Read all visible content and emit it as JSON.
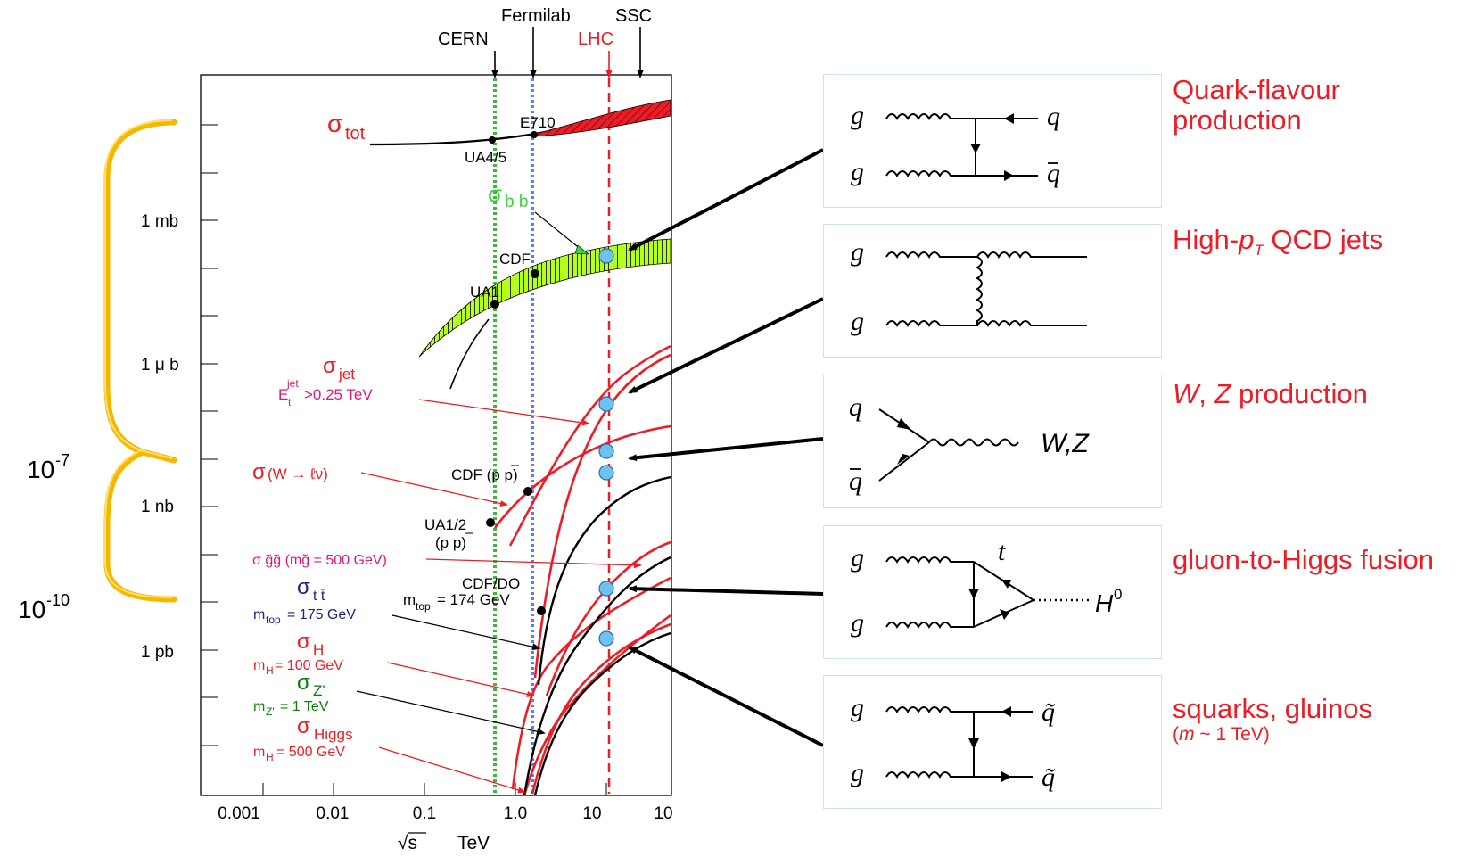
{
  "chart_data": {
    "type": "line",
    "x_axis": {
      "label": "TeV",
      "label_symbol": "√s",
      "scale": "log",
      "range": [
        0.0002,
        100
      ],
      "tick_labels": [
        "0.001",
        "0.01",
        "0.1",
        "1.0",
        "10",
        "10"
      ]
    },
    "y_axis": {
      "scale": "log",
      "tick_labels": [
        "1 mb",
        "1 μ b",
        "1 nb",
        "1 pb"
      ],
      "grid": false
    },
    "colliders": [
      {
        "name": "CERN",
        "sqrt_s_tev": 0.63
      },
      {
        "name": "Fermilab",
        "sqrt_s_tev": 1.8
      },
      {
        "name": "LHC",
        "sqrt_s_tev": 14
      },
      {
        "name": "SSC",
        "sqrt_s_tev": 40
      }
    ],
    "series": [
      {
        "name": "σ tot",
        "color": "#000000"
      },
      {
        "name": "σ b b",
        "color": "#b6ff1c"
      },
      {
        "name": "σ jet",
        "note": "E t jet >0.25 TeV",
        "color": "#ee1c25"
      },
      {
        "name": "σ (W → ℓν)",
        "color": "#ee1c25"
      },
      {
        "name": "σ g̃g̃ (mg̃ = 500 GeV)",
        "color": "#ee1c25"
      },
      {
        "name": "σ t t̄",
        "note": "m top = 175 GeV",
        "color": "#000000"
      },
      {
        "name": "σ H",
        "note": "m H = 100 GeV",
        "color": "#ee1c25"
      },
      {
        "name": "σ Z'",
        "note": "m Z' = 1 TeV",
        "color": "#000000"
      },
      {
        "name": "σ Higgs",
        "note": "m H = 500 GeV",
        "color": "#ee1c25"
      }
    ],
    "measurements": [
      "UA4/5",
      "E710",
      "UA1",
      "CDF",
      "CDF (p p)",
      "UA1/2 (p p)",
      "CDF/DO m top = 174 GeV"
    ]
  },
  "labels": {
    "colliders": {
      "cern": "CERN",
      "fermilab": "Fermilab",
      "lhc": "LHC",
      "ssc": "SSC"
    },
    "y_ticks": {
      "mb": "1 mb",
      "ub": "1 μ b",
      "nb": "1 nb",
      "pb": "1 pb"
    },
    "x_ticks": {
      "t1": "0.001",
      "t2": "0.01",
      "t3": "0.1",
      "t4": "1.0",
      "t5": "10",
      "t6": "10"
    },
    "xaxis": {
      "sqrt": "√s",
      "unit": "TeV"
    },
    "bracket": {
      "top_base": "10",
      "top_exp": "-7",
      "bottom_base": "10",
      "bottom_exp": "-10"
    },
    "measurements": {
      "e710": "E710",
      "ua45": "UA4/5",
      "cdf": "CDF",
      "ua1": "UA1",
      "cdfpp": "CDF (p p)",
      "ua12": "UA1/2",
      "ua12b": "(p p)",
      "cdfdo": "CDF/DO",
      "cdfdo_m": "m",
      "cdfdo_sub": "top",
      "cdfdo_val": "= 174 GeV"
    },
    "sigma": {
      "sym": "σ",
      "tot_sub": "tot",
      "bb_sub": "b b",
      "jet_sub": "jet",
      "jet_e": "E",
      "jet_sup": "jet",
      "jet_t": "t",
      "jet_cut": ">0.25 TeV",
      "w_text": "(W → ℓν)",
      "gg_text": "σ g̃g̃ (mg̃ = 500 GeV)",
      "tt_sub": "t t̄",
      "tt_m": "m",
      "tt_msub": "top",
      "tt_val": "= 175 GeV",
      "h_sub": "H",
      "h_m": "m",
      "h_msub": "H",
      "h_val": "= 100 GeV",
      "z_sub": "Z'",
      "z_m": "m",
      "z_msub": "Z'",
      "z_val": "= 1 TeV",
      "higgs_sub": "Higgs",
      "higgs_m": "m",
      "higgs_msub": "H",
      "higgs_val": "= 500 GeV"
    }
  },
  "processes": [
    {
      "label": "Quark-flavour production",
      "line1": "Quark-flavour",
      "line2": "production"
    },
    {
      "label_pre": "High-",
      "label_p": "p",
      "label_sub": "T",
      "label_post": " QCD jets"
    },
    {
      "label_w": "W",
      "label_mid": ", ",
      "label_z": "Z",
      "label_post": " production"
    },
    {
      "label": "gluon-to-Higgs fusion"
    },
    {
      "label": "squarks, gluinos",
      "note_pre": "(",
      "note_m": "m",
      "note_post": " ~ 1 TeV)"
    }
  ],
  "diagrams": {
    "g": "g",
    "q": "q",
    "qbar": "q",
    "wz": "W,Z",
    "t": "t",
    "h": "H",
    "h_sup": "0",
    "sq": "q̃"
  },
  "colors": {
    "red": "#ee1c25",
    "green": "#3cb83c",
    "blue": "#5a7cf0",
    "gold": "#f5b800",
    "lime": "#b6ff1c"
  }
}
